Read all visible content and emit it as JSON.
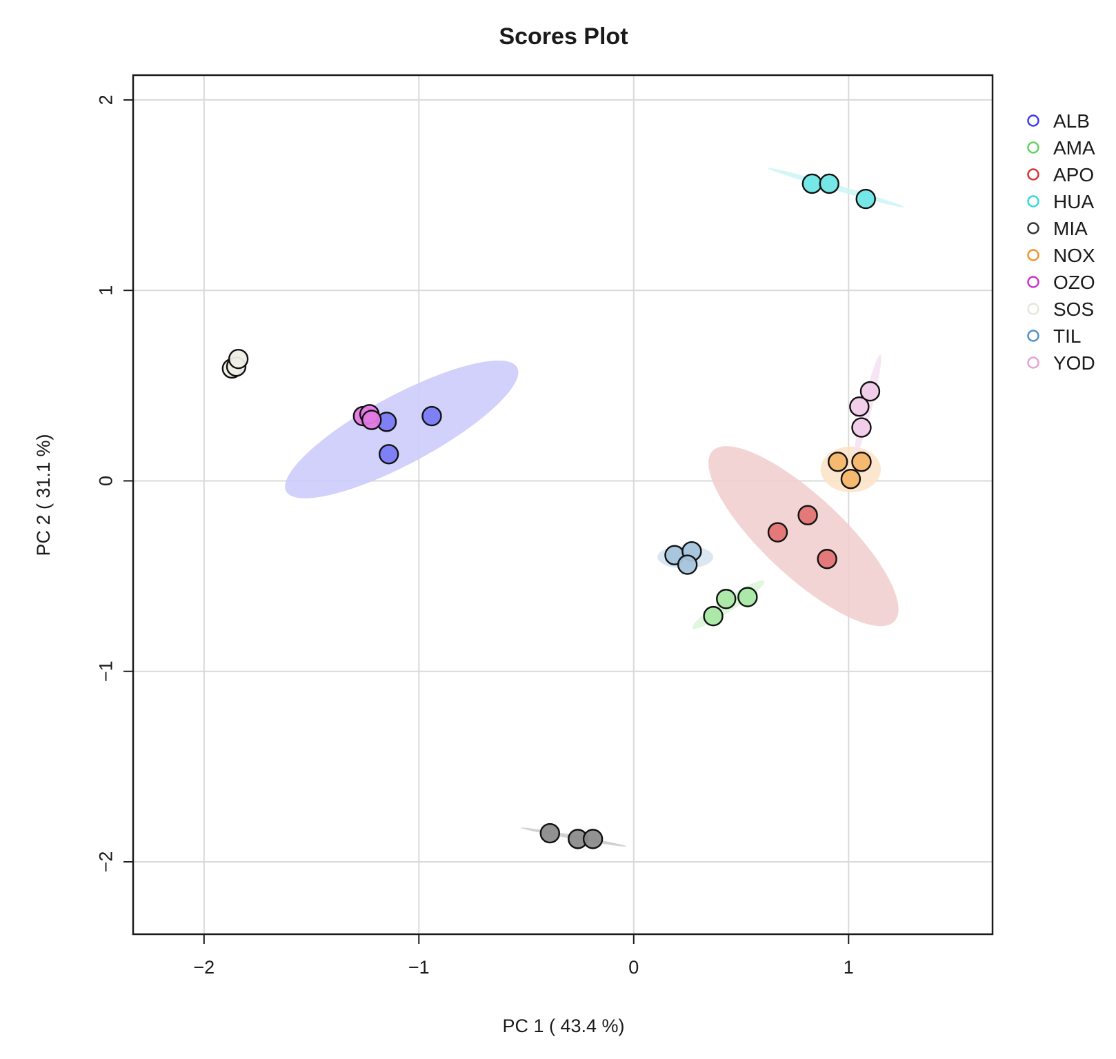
{
  "chart_data": {
    "type": "scatter",
    "title": "Scores Plot",
    "xlabel": "PC 1 ( 43.4 %)",
    "ylabel": "PC 2 ( 31.1 %)",
    "xlim": [
      -2.33,
      1.67
    ],
    "ylim": [
      -2.38,
      2.13
    ],
    "x_ticks": [
      -2,
      -1,
      0,
      1
    ],
    "x_tick_labels": [
      "−2",
      "−1",
      "0",
      "1"
    ],
    "y_ticks": [
      -2,
      -1,
      0,
      1,
      2
    ],
    "y_tick_labels": [
      "−2",
      "−1",
      "0",
      "1",
      "2"
    ],
    "grid": true,
    "legend_position": "right",
    "series": [
      {
        "name": "ALB",
        "color": "#3b3bf0",
        "fill": "#7b7bf5",
        "points": [
          [
            -0.94,
            0.34
          ],
          [
            -1.15,
            0.31
          ],
          [
            -1.14,
            0.14
          ]
        ],
        "ellipse": {
          "cx": -1.08,
          "cy": 0.27,
          "rx": 0.61,
          "ry": 0.18,
          "angle_deg": -28.2,
          "color": "#c9c9fb"
        }
      },
      {
        "name": "AMA",
        "color": "#62d162",
        "fill": "#a9e8a4",
        "points": [
          [
            0.37,
            -0.71
          ],
          [
            0.43,
            -0.62
          ],
          [
            0.53,
            -0.61
          ]
        ],
        "ellipse": {
          "cx": 0.44,
          "cy": -0.65,
          "rx": 0.2,
          "ry": 0.035,
          "angle_deg": -33.3,
          "color": "#daf5d8"
        }
      },
      {
        "name": "APO",
        "color": "#d93333",
        "fill": "#e27474",
        "points": [
          [
            0.67,
            -0.27
          ],
          [
            0.81,
            -0.18
          ],
          [
            0.9,
            -0.41
          ]
        ],
        "ellipse": {
          "cx": 0.79,
          "cy": -0.29,
          "rx": 0.58,
          "ry": 0.21,
          "angle_deg": 43.1,
          "color": "#f1cccc"
        }
      },
      {
        "name": "HUA",
        "color": "#36d9d9",
        "fill": "#6fe6e6",
        "points": [
          [
            0.83,
            1.56
          ],
          [
            0.91,
            1.56
          ],
          [
            1.08,
            1.48
          ]
        ],
        "ellipse": {
          "cx": 0.94,
          "cy": 1.54,
          "rx": 0.33,
          "ry": 0.015,
          "angle_deg": 16.0,
          "color": "#cef5f5"
        }
      },
      {
        "name": "MIA",
        "color": "#333333",
        "fill": "#8c8c8c",
        "points": [
          [
            -0.39,
            -1.85
          ],
          [
            -0.26,
            -1.88
          ],
          [
            -0.19,
            -1.88
          ]
        ],
        "ellipse": {
          "cx": -0.28,
          "cy": -1.87,
          "rx": 0.25,
          "ry": 0.01,
          "angle_deg": 10.0,
          "color": "#c9c9c9"
        }
      },
      {
        "name": "NOX",
        "color": "#f2922c",
        "fill": "#f6b66a",
        "points": [
          [
            0.95,
            0.1
          ],
          [
            1.06,
            0.1
          ],
          [
            1.01,
            0.01
          ]
        ],
        "ellipse": {
          "cx": 1.01,
          "cy": 0.06,
          "rx": 0.14,
          "ry": 0.12,
          "angle_deg": 0,
          "color": "#fbe2c6"
        }
      },
      {
        "name": "OZO",
        "color": "#cc33cc",
        "fill": "#e27ae2",
        "points": [
          [
            -1.26,
            0.34
          ],
          [
            -1.23,
            0.35
          ],
          [
            -1.22,
            0.32
          ]
        ],
        "ellipse": {
          "cx": -1.24,
          "cy": 0.34,
          "rx": 0.05,
          "ry": 0.02,
          "angle_deg": 0,
          "color": "#f2c9f2"
        }
      },
      {
        "name": "SOS",
        "color": "#e6e6d9",
        "fill": "#eeeee6",
        "points": [
          [
            -1.87,
            0.59
          ],
          [
            -1.85,
            0.6
          ],
          [
            -1.84,
            0.64
          ]
        ],
        "ellipse": {
          "cx": -1.85,
          "cy": 0.61,
          "rx": 0.04,
          "ry": 0.015,
          "angle_deg": 60,
          "color": "#f4f4ee"
        }
      },
      {
        "name": "TIL",
        "color": "#5090c8",
        "fill": "#a5c4dc",
        "points": [
          [
            0.19,
            -0.39
          ],
          [
            0.27,
            -0.37
          ],
          [
            0.25,
            -0.44
          ]
        ],
        "ellipse": {
          "cx": 0.24,
          "cy": -0.4,
          "rx": 0.13,
          "ry": 0.06,
          "angle_deg": 0,
          "color": "#d4e3f0"
        }
      },
      {
        "name": "YOD",
        "color": "#e6a0d8",
        "fill": "#f0cbe8",
        "points": [
          [
            1.1,
            0.47
          ],
          [
            1.05,
            0.39
          ],
          [
            1.06,
            0.28
          ]
        ],
        "ellipse": {
          "cx": 1.09,
          "cy": 0.4,
          "rx": 0.24,
          "ry": 0.025,
          "angle_deg": -76.0,
          "color": "#f7e1f2"
        }
      }
    ]
  }
}
